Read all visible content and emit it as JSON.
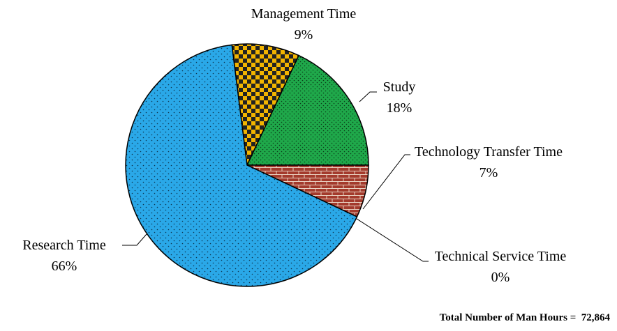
{
  "chart_data": {
    "type": "pie",
    "categories": [
      "Management Time",
      "Study",
      "Technology Transfer Time",
      "Technical Service Time",
      "Research Time"
    ],
    "values": [
      9,
      18,
      7,
      0,
      66
    ],
    "value_labels": [
      "9%",
      "18%",
      "7%",
      "0%",
      "66%"
    ],
    "colors": [
      "#f2b400",
      "#1fa84a",
      "#a33a2c",
      "#7f7f7f",
      "#2aa8e8"
    ],
    "annotation": "Total Number of Man Hours =  72,864"
  }
}
